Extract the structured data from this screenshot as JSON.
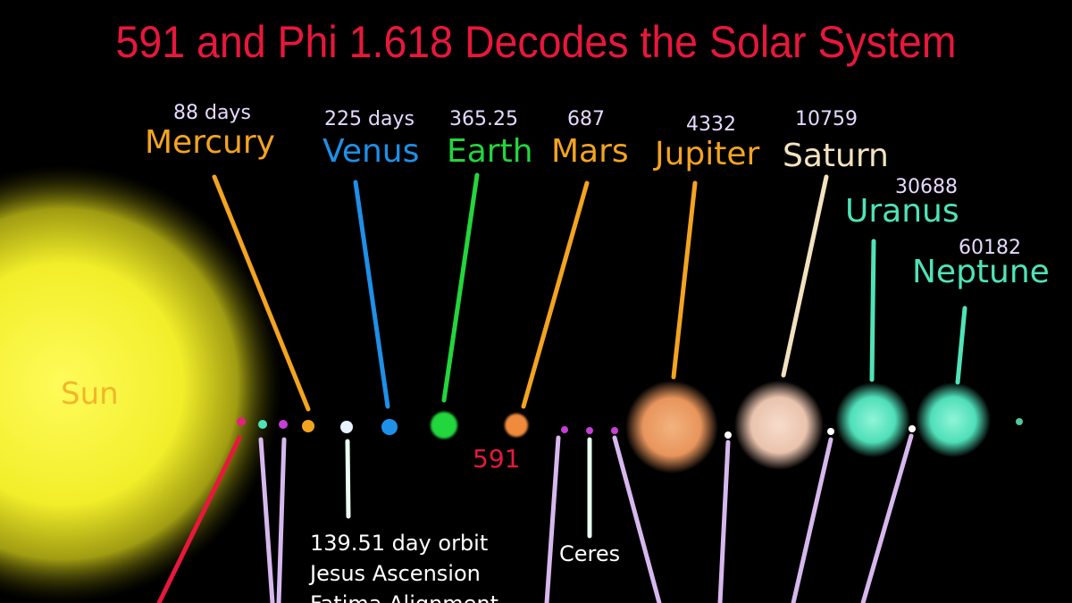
{
  "title": "591 and Phi 1.618 Decodes the Solar System",
  "colors": {
    "title": "#e8173c",
    "sun": "#f7f224",
    "sun_label": "#f1b62a",
    "mercury": "#f3a41f",
    "venus": "#1e90e8",
    "earth": "#22d63c",
    "mars": "#f3a41f",
    "jupiter": "#f3a41f",
    "saturn": "#f3e2c0",
    "uranus": "#4fe3b7",
    "neptune": "#4fe3b7",
    "label_591": "#e8173c",
    "asteroid_line": "#d6b8ee"
  },
  "sun": {
    "name": "Sun"
  },
  "planets": [
    {
      "key": "mercury",
      "name": "Mercury",
      "period": "88 days"
    },
    {
      "key": "venus",
      "name": "Venus",
      "period": "225 days"
    },
    {
      "key": "earth",
      "name": "Earth",
      "period": "365.25"
    },
    {
      "key": "mars",
      "name": "Mars",
      "period": "687"
    },
    {
      "key": "jupiter",
      "name": "Jupiter",
      "period": "4332"
    },
    {
      "key": "saturn",
      "name": "Saturn",
      "period": "10759"
    },
    {
      "key": "uranus",
      "name": "Uranus",
      "period": "30688"
    },
    {
      "key": "neptune",
      "name": "Neptune",
      "period": "60182"
    }
  ],
  "labels": {
    "n591": "591",
    "orbit_note": [
      "139.51 day orbit",
      "Jesus Ascension",
      "Fatima Alignment"
    ],
    "ceres": "Ceres"
  }
}
